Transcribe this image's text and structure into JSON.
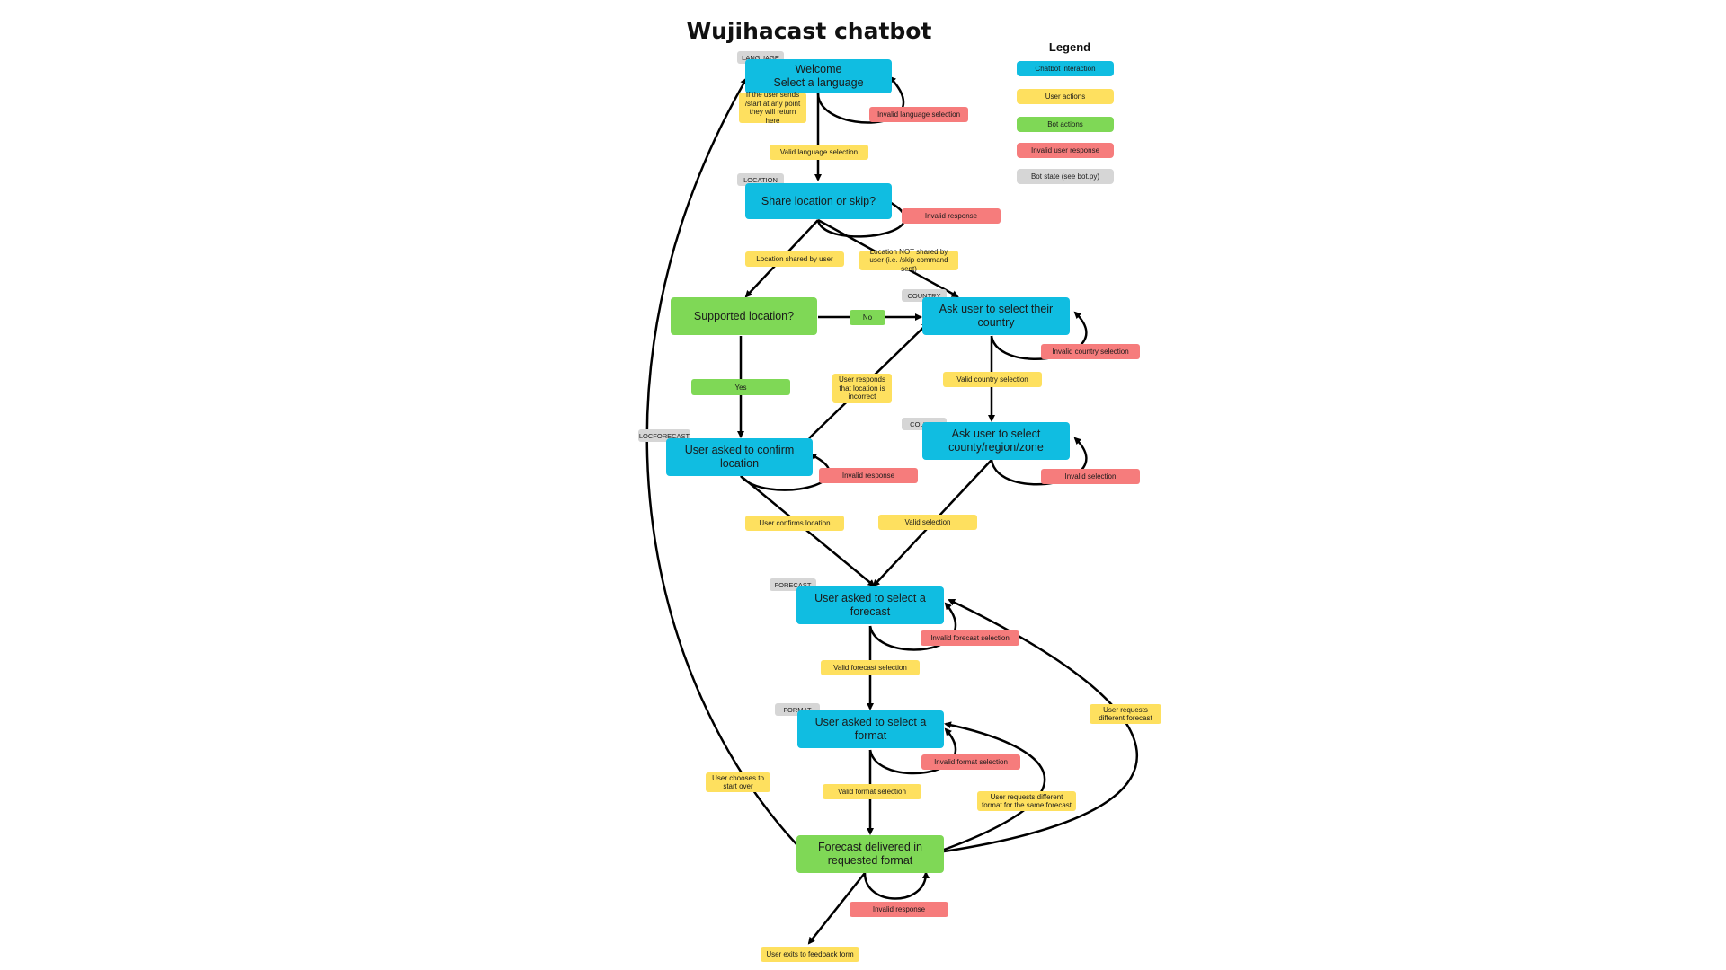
{
  "title": "Wujihacast chatbot",
  "legend": {
    "title": "Legend",
    "items": [
      {
        "label": "Chatbot interaction",
        "color": "#10bde1"
      },
      {
        "label": "User actions",
        "color": "#fee05f"
      },
      {
        "label": "Bot actions",
        "color": "#7fd856"
      },
      {
        "label": "Invalid user response",
        "color": "#f67c7c"
      },
      {
        "label": "Bot state (see bot.py)",
        "color": "#d6d6d6"
      }
    ]
  },
  "states": {
    "language": "LANGUAGE",
    "location": "LOCATION",
    "country": "COUNTRY",
    "county": "COUNTY",
    "locforecast": "LOCFORECAST",
    "forecast": "FORECAST",
    "format": "FORMAT"
  },
  "nodes": {
    "welcome": "Welcome\nSelect a language",
    "share_location": "Share location or skip?",
    "supported_location": "Supported location?",
    "ask_country": "Ask user to select their country",
    "ask_county": "Ask user to select county/region/zone",
    "confirm_location": "User asked to confirm location",
    "select_forecast": "User asked to select a forecast",
    "select_format": "User asked to select a format",
    "forecast_delivered": "Forecast delivered in requested format"
  },
  "user_actions": {
    "start_note": "If the user sends /start at any point they will return here",
    "valid_language": "Valid language selection",
    "location_shared": "Location shared by user",
    "location_not_shared": "Location NOT shared by user (i.e. /skip command sent)",
    "valid_country": "Valid country selection",
    "location_incorrect": "User responds that location is incorrect",
    "confirms_location": "User confirms location",
    "valid_selection": "Valid selection",
    "valid_forecast": "Valid forecast selection",
    "different_forecast": "User requests different forecast",
    "valid_format": "Valid format selection",
    "different_format": "User requests different format for the same forecast",
    "start_over": "User chooses to start over",
    "exit_feedback": "User exits to feedback form"
  },
  "bot_actions": {
    "no": "No",
    "yes": "Yes"
  },
  "invalid": {
    "language": "Invalid language selection",
    "response_location": "Invalid response",
    "country": "Invalid country selection",
    "response_confirm": "Invalid response",
    "selection_county": "Invalid selection",
    "forecast": "Invalid forecast selection",
    "format": "Invalid format selection",
    "response_delivered": "Invalid response"
  }
}
